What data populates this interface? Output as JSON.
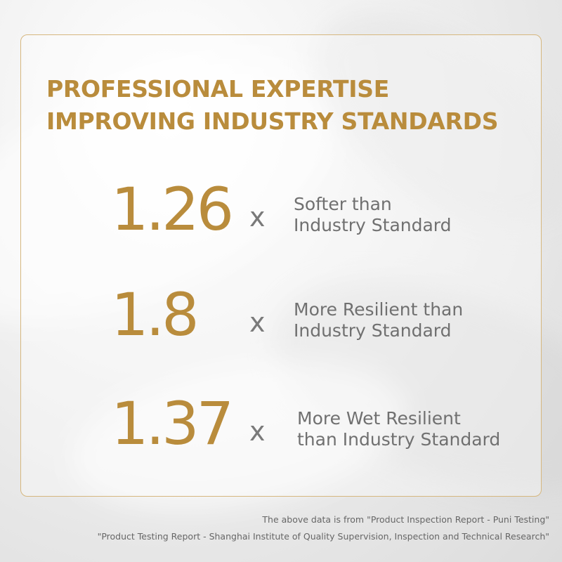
{
  "headline": {
    "line1": "PROFESSIONAL EXPERTISE",
    "line2": "IMPROVING INDUSTRY STANDARDS"
  },
  "stats": [
    {
      "value": "1.26",
      "multiplier": "x",
      "desc_line1": "Softer than",
      "desc_line2": "Industry Standard"
    },
    {
      "value": "1.8",
      "multiplier": "x",
      "desc_line1": "More Resilient than",
      "desc_line2": "Industry Standard"
    },
    {
      "value": "1.37",
      "multiplier": "x",
      "desc_line1": "More Wet Resilient",
      "desc_line2": "than Industry Standard"
    }
  ],
  "footnote": {
    "line1": "The above data is from \"Product Inspection Report - Puni Testing\"",
    "line2": "\"Product Testing Report - Shanghai Institute of Quality Supervision, Inspection and Technical Research\""
  },
  "colors": {
    "accent_gold": "#b98c3c",
    "border_gold": "#d6b77f",
    "text_gray": "#707070"
  }
}
